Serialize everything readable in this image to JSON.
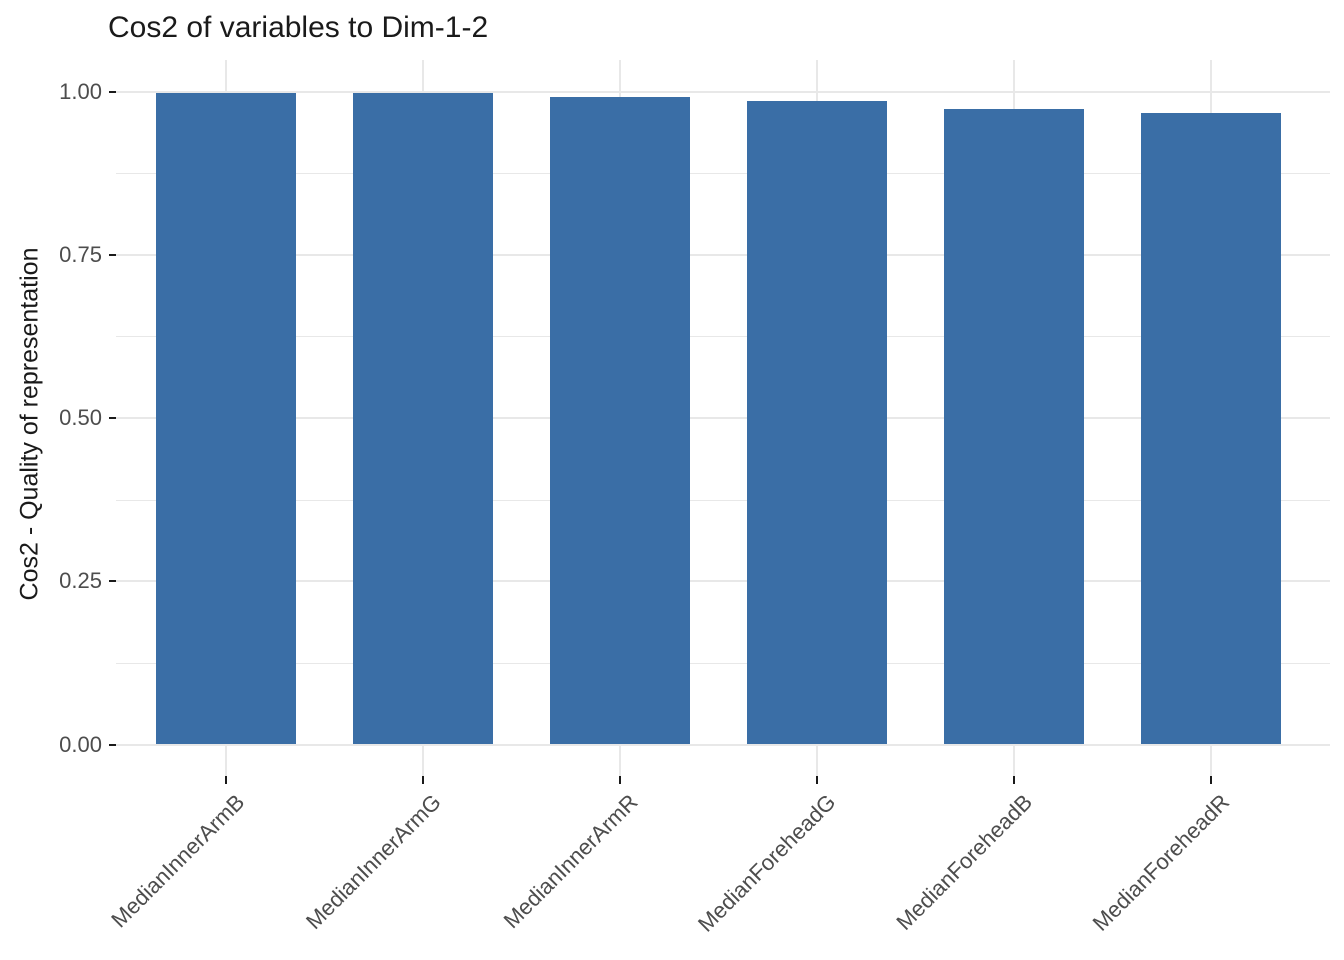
{
  "figure": {
    "background": "#FFFFFF"
  },
  "chart_data": {
    "type": "bar",
    "title": "Cos2 of variables to Dim-1-2",
    "xlabel": "",
    "ylabel": "Cos2 - Quality of representation",
    "categories": [
      "MedianInnerArmB",
      "MedianInnerArmG",
      "MedianInnerArmR",
      "MedianForeheadG",
      "MedianForeheadB",
      "MedianForeheadR"
    ],
    "values": [
      0.998,
      0.997,
      0.991,
      0.985,
      0.973,
      0.967
    ],
    "ylim": [
      0,
      1.05
    ],
    "yticks": [
      0,
      0.25,
      0.5,
      0.75,
      1.0
    ],
    "ytick_labels": [
      "0.00",
      "0.25",
      "0.50",
      "0.75",
      "1.00"
    ],
    "minor_yticks": [
      0.125,
      0.375,
      0.625,
      0.875
    ],
    "grid": true,
    "legend_position": "none",
    "x_tick_label_angle": -45,
    "bar_color": "#3A6EA6"
  },
  "colors": {
    "bar": "#3A6EA6",
    "gridline": "#E8E8E8",
    "axis_text": "#4D4D4D",
    "tick_mark": "#1A1A1A",
    "title_text": "#1A1A1A",
    "background": "#FFFFFF"
  }
}
